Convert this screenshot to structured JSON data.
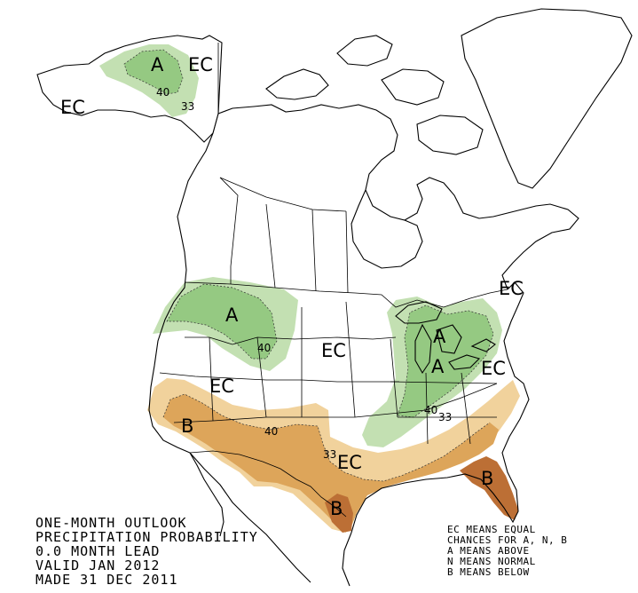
{
  "colors": {
    "above_light": "#c3e0b2",
    "above_dark": "#95c982",
    "below_light": "#f1d29c",
    "below_mid": "#dda55a",
    "below_dark": "#bc6f35",
    "land_line": "#000000"
  },
  "region_labels": {
    "alaska_a": "A",
    "alaska_ec_east": "EC",
    "alaska_ec_west": "EC",
    "northwest_a": "A",
    "great_lakes_a": "A",
    "ohio_a": "A",
    "central_ec": "EC",
    "rockies_ec": "EC",
    "southern_plains_ec": "EC",
    "northeast_ec": "EC",
    "midatlantic_ec": "EC",
    "southwest_b": "B",
    "texas_b": "B",
    "florida_b": "B"
  },
  "contour_labels": {
    "alaska_40": "40",
    "alaska_33": "33",
    "northwest_40": "40",
    "ohio_40": "40",
    "southeast_33": "33",
    "southwest_40": "40",
    "texas_33": "33"
  },
  "title_lines": [
    "ONE-MONTH OUTLOOK",
    "PRECIPITATION PROBABILITY",
    "0.0 MONTH LEAD",
    "VALID JAN 2012",
    "MADE 31 DEC 2011"
  ],
  "legend_lines": [
    "EC MEANS EQUAL",
    "CHANCES FOR A, N, B",
    "A MEANS ABOVE",
    "N MEANS NORMAL",
    "B MEANS BELOW"
  ]
}
